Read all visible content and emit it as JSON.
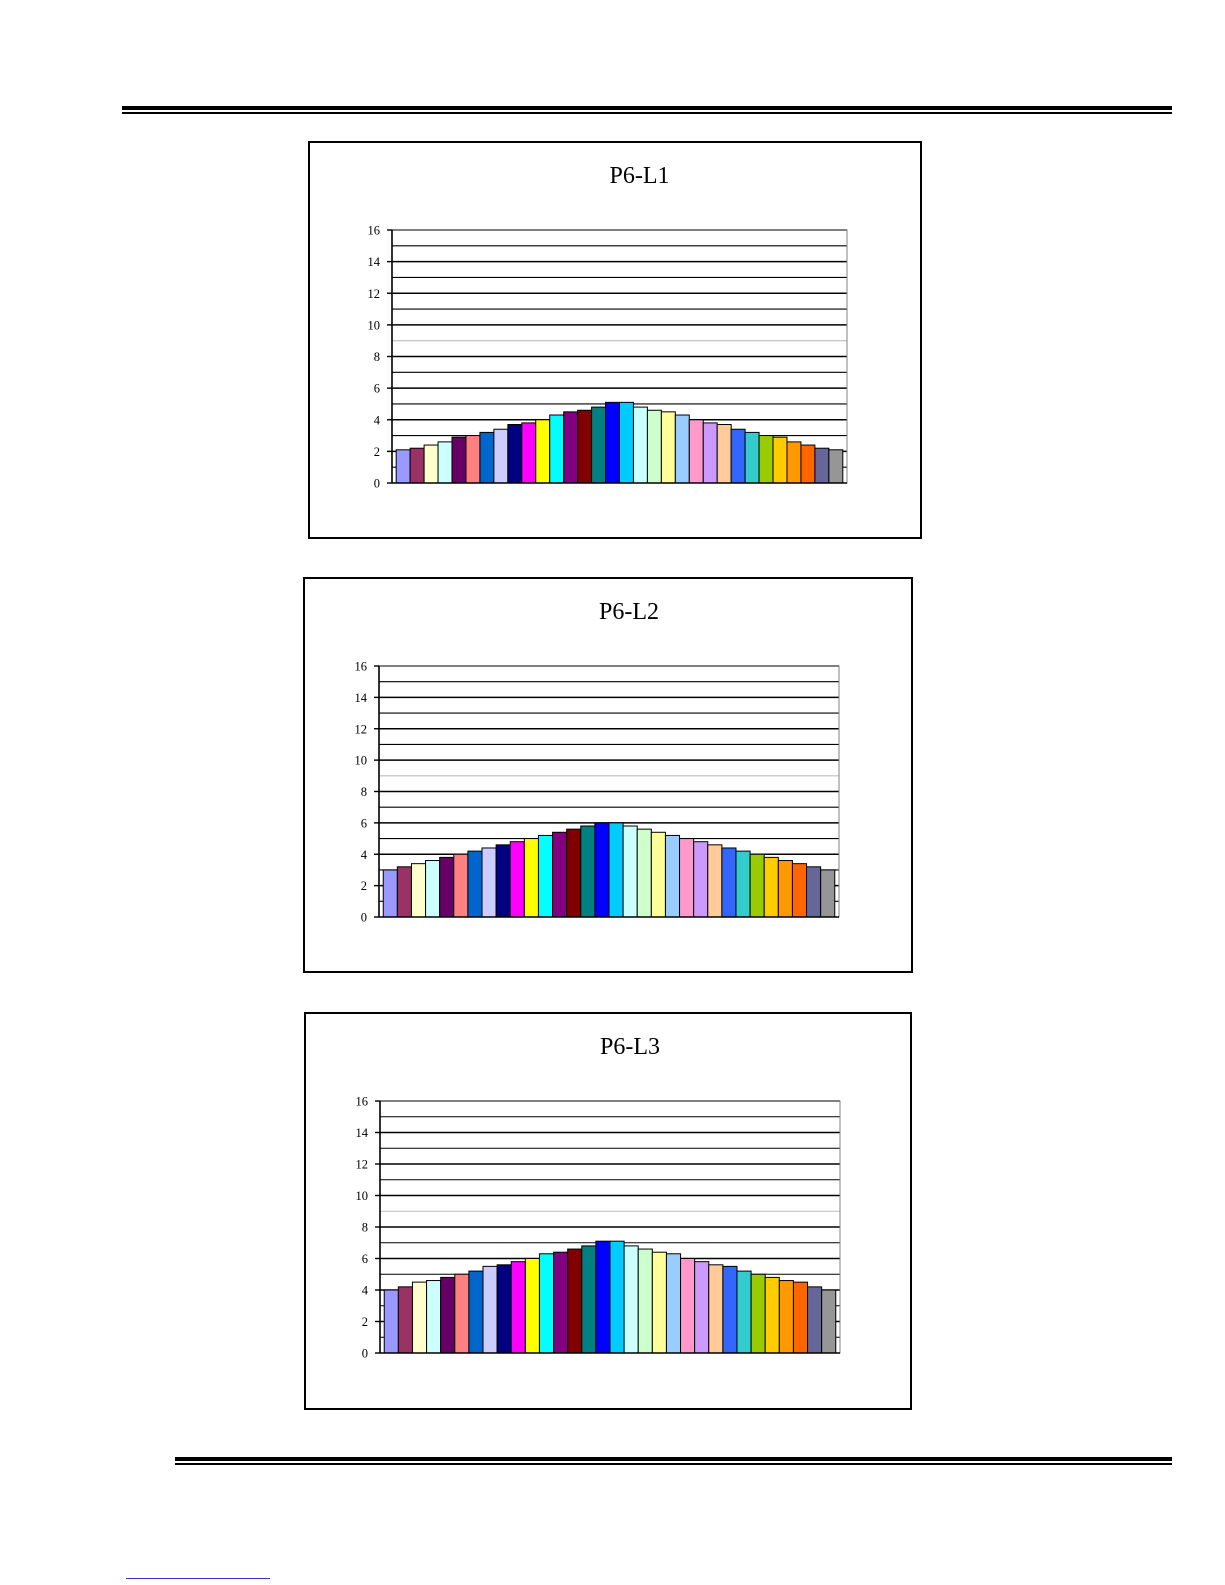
{
  "charts": [
    {
      "type": "bar",
      "title": "P6-L1",
      "ylim": [
        0,
        16
      ],
      "yticks": [
        "0",
        "2",
        "4",
        "6",
        "8",
        "10",
        "12",
        "14",
        "16"
      ],
      "grid": true,
      "values": [
        2.1,
        2.2,
        2.4,
        2.6,
        2.9,
        3.0,
        3.2,
        3.4,
        3.7,
        3.8,
        4.0,
        4.3,
        4.5,
        4.6,
        4.8,
        5.1,
        5.1,
        4.8,
        4.6,
        4.5,
        4.3,
        4.0,
        3.8,
        3.7,
        3.4,
        3.2,
        3.0,
        2.9,
        2.6,
        2.4,
        2.2,
        2.1
      ]
    },
    {
      "type": "bar",
      "title": "P6-L2",
      "ylim": [
        0,
        16
      ],
      "yticks": [
        "0",
        "2",
        "4",
        "6",
        "8",
        "10",
        "12",
        "14",
        "16"
      ],
      "grid": true,
      "values": [
        3.0,
        3.2,
        3.4,
        3.6,
        3.8,
        4.0,
        4.2,
        4.4,
        4.6,
        4.8,
        5.0,
        5.2,
        5.4,
        5.6,
        5.8,
        6.0,
        6.0,
        5.8,
        5.6,
        5.4,
        5.2,
        5.0,
        4.8,
        4.6,
        4.4,
        4.2,
        4.0,
        3.8,
        3.6,
        3.4,
        3.2,
        3.0
      ]
    },
    {
      "type": "bar",
      "title": "P6-L3",
      "ylim": [
        0,
        16
      ],
      "yticks": [
        "0",
        "2",
        "4",
        "6",
        "8",
        "10",
        "12",
        "14",
        "16"
      ],
      "grid": true,
      "values": [
        4.0,
        4.2,
        4.5,
        4.6,
        4.8,
        5.0,
        5.2,
        5.5,
        5.6,
        5.8,
        6.0,
        6.3,
        6.4,
        6.6,
        6.8,
        7.1,
        7.1,
        6.8,
        6.6,
        6.4,
        6.3,
        6.0,
        5.8,
        5.6,
        5.5,
        5.2,
        5.0,
        4.8,
        4.6,
        4.5,
        4.2,
        4.0
      ]
    }
  ],
  "bar_colors": [
    "#9999ff",
    "#993366",
    "#ffffcc",
    "#ccffff",
    "#660066",
    "#ff8080",
    "#0066cc",
    "#ccccff",
    "#000080",
    "#ff00ff",
    "#ffff00",
    "#00ffff",
    "#800080",
    "#800000",
    "#008080",
    "#0000ff",
    "#00ccff",
    "#ccffff",
    "#ccffcc",
    "#ffff99",
    "#99ccff",
    "#ff99cc",
    "#cc99ff",
    "#ffcc99",
    "#3366ff",
    "#33cccc",
    "#99cc00",
    "#ffcc00",
    "#ff9900",
    "#ff6600",
    "#666699",
    "#969696"
  ]
}
